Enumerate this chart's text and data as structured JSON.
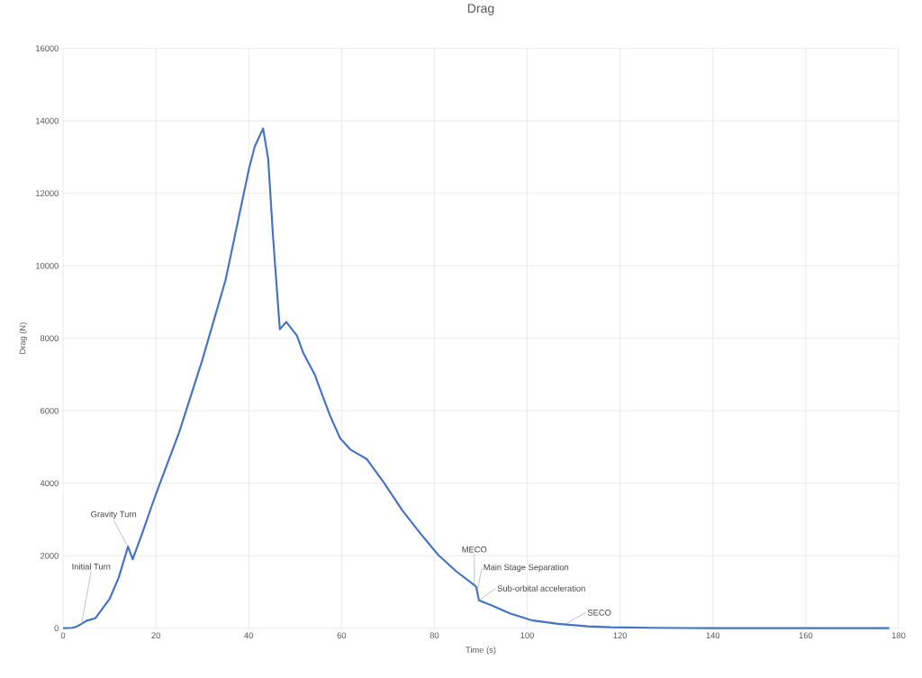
{
  "chart_data": {
    "type": "line",
    "title": "Drag",
    "xlabel": "Time (s)",
    "ylabel": "Drag (N)",
    "xlim": [
      0,
      180
    ],
    "ylim": [
      0,
      16000
    ],
    "xticks": [
      0,
      20,
      40,
      60,
      80,
      100,
      120,
      140,
      160,
      180
    ],
    "yticks": [
      0,
      2000,
      4000,
      6000,
      8000,
      10000,
      12000,
      14000,
      16000
    ],
    "grid": true,
    "marker": "none",
    "line_style": "solid",
    "series": [
      {
        "color": "#4472c4",
        "x": [
          0,
          2,
          3,
          4,
          5,
          7,
          10,
          12,
          14,
          15,
          17,
          20,
          25,
          30,
          35,
          40.1,
          41.3,
          43.1,
          44.2,
          45.2,
          45.9,
          46.7,
          48.1,
          50.4,
          51.8,
          54.3,
          54.7,
          57.6,
          59.7,
          62,
          65.4,
          69.2,
          73.1,
          77,
          80.9,
          84.7,
          88.6,
          89,
          89.6,
          92.5,
          96.4,
          100.9,
          106.7,
          113,
          118,
          127,
          140,
          160,
          178
        ],
        "values": [
          0,
          10,
          50,
          120,
          200,
          280,
          800,
          1400,
          2250,
          1900,
          2600,
          3700,
          5400,
          7400,
          9600,
          12700,
          13290,
          13790,
          12940,
          10880,
          9640,
          8250,
          8450,
          8070,
          7580,
          6980,
          6830,
          5840,
          5240,
          4920,
          4670,
          4000,
          3250,
          2610,
          2010,
          1570,
          1190,
          1140,
          770,
          620,
          400,
          220,
          120,
          50,
          25,
          10,
          0,
          0,
          0
        ]
      }
    ],
    "annotations": [
      {
        "text": "Initial Turn",
        "x": 4,
        "y": 120
      },
      {
        "text": "Gravity Turn",
        "x": 14,
        "y": 2250
      },
      {
        "text": "MECO",
        "x": 88.6,
        "y": 1190
      },
      {
        "text": "Main Stage Separation",
        "x": 89.2,
        "y": 1000
      },
      {
        "text": "Sub-orbital acceleration",
        "x": 89.6,
        "y": 770
      },
      {
        "text": "SECO",
        "x": 108,
        "y": 100
      }
    ]
  }
}
